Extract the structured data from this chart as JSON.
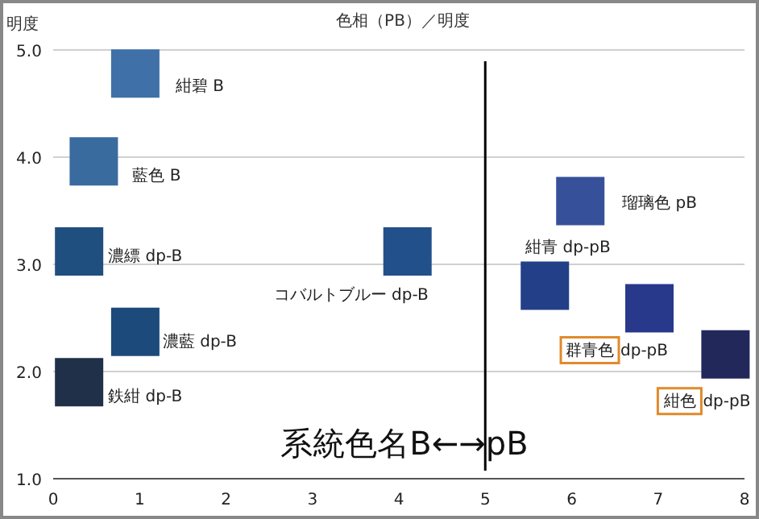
{
  "chart_data": {
    "type": "scatter",
    "title": "色相（PB）／明度",
    "ylabel": "明度",
    "marker": "square",
    "grid": "y",
    "xlim": [
      0,
      8
    ],
    "xticks": [
      0,
      1,
      2,
      3,
      4,
      5,
      6,
      7,
      8
    ],
    "ylim": [
      1.0,
      5.0
    ],
    "yticks": [
      {
        "value": 1.0,
        "label": "1.0"
      },
      {
        "value": 2.0,
        "label": "2.0"
      },
      {
        "value": 3.0,
        "label": "3.0"
      },
      {
        "value": 4.0,
        "label": "4.0"
      },
      {
        "value": 5.0,
        "label": "5.0"
      }
    ],
    "ref_lines": [
      {
        "axis": "x",
        "value": 5,
        "label": null,
        "color": "#000000"
      }
    ],
    "annotations": [
      "系統色名B←→pB"
    ],
    "series": [
      {
        "name": "紺碧 B",
        "color": "#3f70a8",
        "x": [
          0.95
        ],
        "values": [
          4.78
        ]
      },
      {
        "name": "藍色 B",
        "color": "#3a6b9f",
        "x": [
          0.47
        ],
        "values": [
          3.96
        ]
      },
      {
        "name": "濃縹 dp-B",
        "color": "#1f4f7f",
        "x": [
          0.3
        ],
        "values": [
          3.12
        ]
      },
      {
        "name": "濃藍 dp-B",
        "color": "#1c4a7a",
        "x": [
          0.95
        ],
        "values": [
          2.37
        ]
      },
      {
        "name": "鉄紺 dp-B",
        "color": "#1f3048",
        "x": [
          0.3
        ],
        "values": [
          1.9
        ]
      },
      {
        "name": "コバルトブルー dp-B",
        "color": "#22508a",
        "x": [
          4.1
        ],
        "values": [
          3.12
        ]
      },
      {
        "name": "瑠璃色 pB",
        "color": "#37509a",
        "x": [
          6.1
        ],
        "values": [
          3.59
        ]
      },
      {
        "name": "紺青 dp-pB",
        "color": "#233f88",
        "x": [
          5.69
        ],
        "values": [
          2.8
        ]
      },
      {
        "name": "群青色 dp-pB",
        "color": "#28388b",
        "x": [
          6.9
        ],
        "values": [
          2.59
        ]
      },
      {
        "name": "紺色 dp-pB",
        "color": "#22285a",
        "x": [
          7.78
        ],
        "values": [
          2.16
        ]
      }
    ]
  }
}
